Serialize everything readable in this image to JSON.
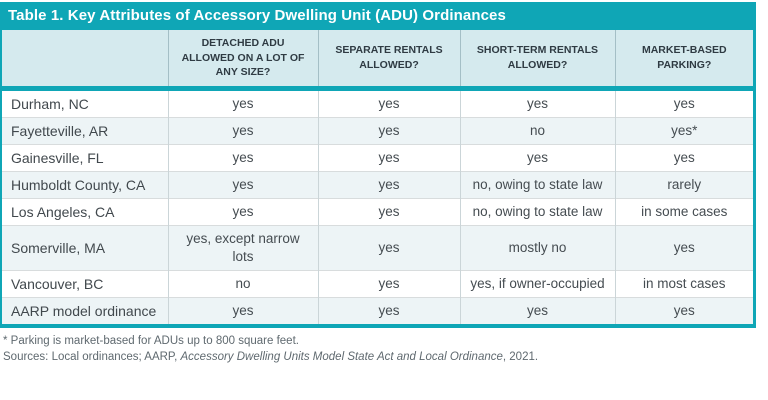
{
  "table": {
    "title": "Table 1. Key Attributes of Accessory Dwelling Unit (ADU) Ordinances",
    "columns": [
      "",
      "DETACHED ADU ALLOWED ON A LOT OF ANY SIZE?",
      "SEPARATE RENTALS ALLOWED?",
      "SHORT-TERM RENTALS ALLOWED?",
      "MARKET-BASED PARKING?"
    ],
    "rows": [
      {
        "label": "Durham, NC",
        "cells": [
          "yes",
          "yes",
          "yes",
          "yes"
        ]
      },
      {
        "label": "Fayetteville, AR",
        "cells": [
          "yes",
          "yes",
          "no",
          "yes*"
        ]
      },
      {
        "label": "Gainesville, FL",
        "cells": [
          "yes",
          "yes",
          "yes",
          "yes"
        ]
      },
      {
        "label": "Humboldt County, CA",
        "cells": [
          "yes",
          "yes",
          "no, owing to state law",
          "rarely"
        ]
      },
      {
        "label": "Los Angeles, CA",
        "cells": [
          "yes",
          "yes",
          "no, owing to state law",
          "in some cases"
        ]
      },
      {
        "label": "Somerville, MA",
        "cells": [
          "yes, except narrow lots",
          "yes",
          "mostly no",
          "yes"
        ]
      },
      {
        "label": "Vancouver, BC",
        "cells": [
          "no",
          "yes",
          "yes, if owner-occupied",
          "in most cases"
        ]
      },
      {
        "label": "AARP model ordinance",
        "cells": [
          "yes",
          "yes",
          "yes",
          "yes"
        ]
      }
    ]
  },
  "footnotes": {
    "note": "* Parking is market-based for ADUs up to 800 square feet.",
    "sources_prefix": "Sources: Local ordinances; AARP, ",
    "sources_italic": "Accessory Dwelling Units Model State Act and Local Ordinance",
    "sources_suffix": ", 2021."
  },
  "colors": {
    "accent_teal": "#0FA6B6",
    "header_bg": "#D5EAEE",
    "row_alt_bg": "#EDF4F6",
    "body_text": "#454C51",
    "footnote_text": "#5F696F"
  }
}
